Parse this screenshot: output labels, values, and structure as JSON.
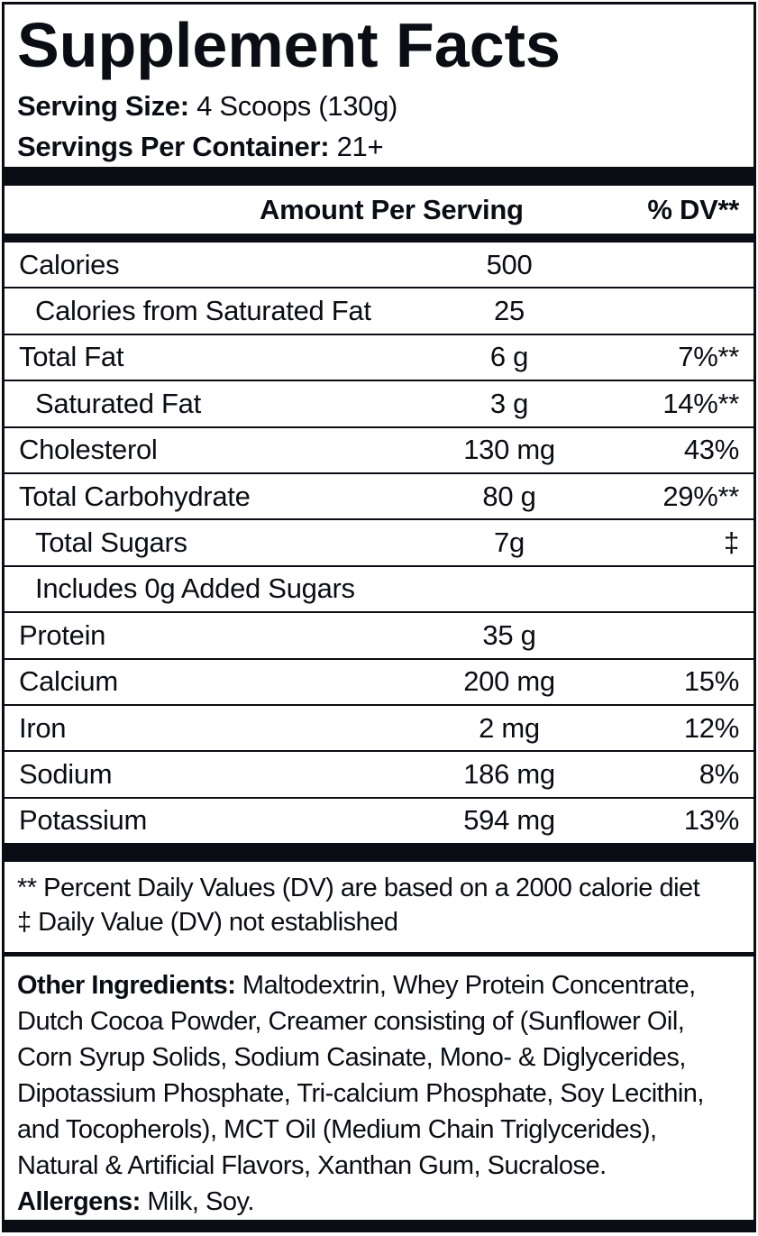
{
  "title": "Supplement Facts",
  "serving": {
    "size_label": "Serving Size:",
    "size_value": "4 Scoops (130g)",
    "per_container_label": "Servings Per Container:",
    "per_container_value": "21+"
  },
  "table": {
    "amount_header": "Amount Per Serving",
    "dv_header": "% DV**",
    "rows": [
      {
        "label": "Calories",
        "amount": "500",
        "dv": ""
      },
      {
        "label": "Calories from Saturated Fat",
        "amount": "25",
        "dv": ""
      },
      {
        "label": "Total Fat",
        "amount": "6 g",
        "dv": "7%**"
      },
      {
        "label": "Saturated Fat",
        "amount": "3 g",
        "dv": "14%**"
      },
      {
        "label": "Cholesterol",
        "amount": "130 mg",
        "dv": "43%"
      },
      {
        "label": "Total Carbohydrate",
        "amount": "80 g",
        "dv": "29%**"
      },
      {
        "label": "Total Sugars",
        "amount": "7g",
        "dv": "‡"
      },
      {
        "label": "Includes 0g Added Sugars",
        "amount": "",
        "dv": ""
      },
      {
        "label": "Protein",
        "amount": "35 g",
        "dv": ""
      },
      {
        "label": "Calcium",
        "amount": "200 mg",
        "dv": "15%"
      },
      {
        "label": "Iron",
        "amount": "2 mg",
        "dv": "12%"
      },
      {
        "label": "Sodium",
        "amount": "186 mg",
        "dv": "8%"
      },
      {
        "label": "Potassium",
        "amount": "594 mg",
        "dv": "13%"
      }
    ]
  },
  "footnotes": {
    "dv_note": "** Percent Daily Values (DV) are based on a 2000 calorie diet",
    "dagger_note": "‡ Daily Value (DV) not established"
  },
  "other_ingredients": {
    "label": "Other Ingredients:",
    "text": " Maltodextrin, Whey Protein Concentrate, Dutch Cocoa Powder, Creamer consisting of (Sunflower Oil, Corn Syrup Solids, Sodium Casinate, Mono- & Diglycerides, Dipotassium Phosphate, Tri-calcium Phosphate, Soy Lecithin, and Tocopherols), MCT Oil (Medium Chain Triglycerides), Natural & Artificial Flavors, Xanthan Gum, Sucralose."
  },
  "allergens": {
    "label": "Allergens:",
    "text": " Milk, Soy."
  },
  "colors": {
    "ink": "#0a0e14",
    "background": "#ffffff"
  }
}
